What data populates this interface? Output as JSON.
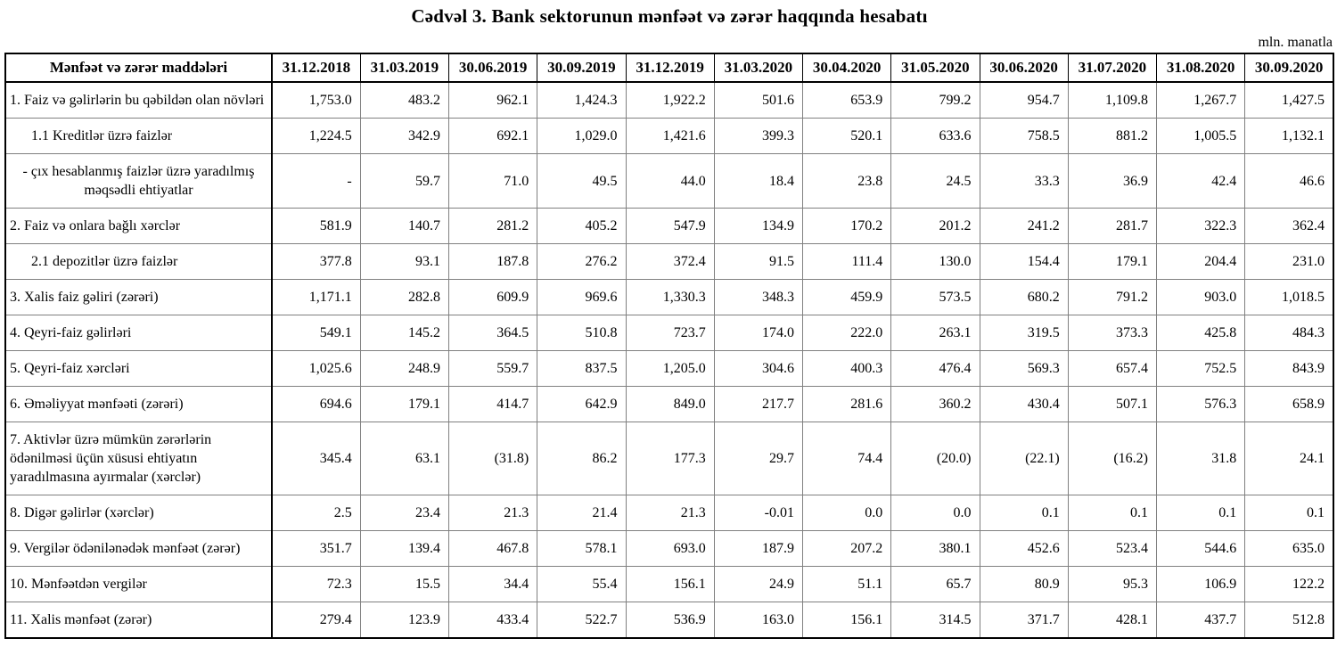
{
  "title": "Cədvəl 3. Bank sektorunun mənfəət və zərər haqqında hesabatı",
  "unit_label": "mln. manatla",
  "table": {
    "header": [
      "Mənfəət və zərər maddələri",
      "31.12.2018",
      "31.03.2019",
      "30.06.2019",
      "30.09.2019",
      "31.12.2019",
      "31.03.2020",
      "30.04.2020",
      "31.05.2020",
      "30.06.2020",
      "31.07.2020",
      "31.08.2020",
      "30.09.2020"
    ],
    "rows": [
      {
        "label": "1. Faiz və gəlirlərin bu qəbildən olan növləri",
        "style": "main",
        "values": [
          "1,753.0",
          "483.2",
          "962.1",
          "1,424.3",
          "1,922.2",
          "501.6",
          "653.9",
          "799.2",
          "954.7",
          "1,109.8",
          "1,267.7",
          "1,427.5"
        ]
      },
      {
        "label": "1.1 Kreditlər üzrə faizlər",
        "style": "sub",
        "values": [
          "1,224.5",
          "342.9",
          "692.1",
          "1,029.0",
          "1,421.6",
          "399.3",
          "520.1",
          "633.6",
          "758.5",
          "881.2",
          "1,005.5",
          "1,132.1"
        ]
      },
      {
        "label": "-  çıx hesablanmış faizlər üzrə yaradılmış məqsədli ehtiyatlar",
        "style": "center",
        "values": [
          "-",
          "59.7",
          "71.0",
          "49.5",
          "44.0",
          "18.4",
          "23.8",
          "24.5",
          "33.3",
          "36.9",
          "42.4",
          "46.6"
        ]
      },
      {
        "label": "2. Faiz və onlara bağlı xərclər",
        "style": "main",
        "values": [
          "581.9",
          "140.7",
          "281.2",
          "405.2",
          "547.9",
          "134.9",
          "170.2",
          "201.2",
          "241.2",
          "281.7",
          "322.3",
          "362.4"
        ]
      },
      {
        "label": "2.1 depozitlər üzrə faizlər",
        "style": "sub",
        "values": [
          "377.8",
          "93.1",
          "187.8",
          "276.2",
          "372.4",
          "91.5",
          "111.4",
          "130.0",
          "154.4",
          "179.1",
          "204.4",
          "231.0"
        ]
      },
      {
        "label": "3. Xalis faiz gəliri (zərəri)",
        "style": "main",
        "values": [
          "1,171.1",
          "282.8",
          "609.9",
          "969.6",
          "1,330.3",
          "348.3",
          "459.9",
          "573.5",
          "680.2",
          "791.2",
          "903.0",
          "1,018.5"
        ]
      },
      {
        "label": "4. Qeyri-faiz gəlirləri",
        "style": "main",
        "values": [
          "549.1",
          "145.2",
          "364.5",
          "510.8",
          "723.7",
          "174.0",
          "222.0",
          "263.1",
          "319.5",
          "373.3",
          "425.8",
          "484.3"
        ]
      },
      {
        "label": "5. Qeyri-faiz xərcləri",
        "style": "main",
        "values": [
          "1,025.6",
          "248.9",
          "559.7",
          "837.5",
          "1,205.0",
          "304.6",
          "400.3",
          "476.4",
          "569.3",
          "657.4",
          "752.5",
          "843.9"
        ]
      },
      {
        "label": "6. Əməliyyat mənfəəti (zərəri)",
        "style": "main",
        "values": [
          "694.6",
          "179.1",
          "414.7",
          "642.9",
          "849.0",
          "217.7",
          "281.6",
          "360.2",
          "430.4",
          "507.1",
          "576.3",
          "658.9"
        ]
      },
      {
        "label": "7. Aktivlər üzrə mümkün zərərlərin ödənilməsi üçün xüsusi ehtiyatın yaradılmasına ayırmalar (xərclər)",
        "style": "main",
        "values": [
          "345.4",
          "63.1",
          "(31.8)",
          "86.2",
          "177.3",
          "29.7",
          "74.4",
          "(20.0)",
          "(22.1)",
          "(16.2)",
          "31.8",
          "24.1"
        ]
      },
      {
        "label": "8. Digər gəlirlər (xərclər)",
        "style": "main",
        "values": [
          "2.5",
          "23.4",
          "21.3",
          "21.4",
          "21.3",
          "-0.01",
          "0.0",
          "0.0",
          "0.1",
          "0.1",
          "0.1",
          "0.1"
        ]
      },
      {
        "label": "9. Vergilər ödənilənədək mənfəət (zərər)",
        "style": "main",
        "values": [
          "351.7",
          "139.4",
          "467.8",
          "578.1",
          "693.0",
          "187.9",
          "207.2",
          "380.1",
          "452.6",
          "523.4",
          "544.6",
          "635.0"
        ]
      },
      {
        "label": "10. Mənfəətdən vergilər",
        "style": "main",
        "values": [
          "72.3",
          "15.5",
          "34.4",
          "55.4",
          "156.1",
          "24.9",
          "51.1",
          "65.7",
          "80.9",
          "95.3",
          "106.9",
          "122.2"
        ]
      },
      {
        "label": "11. Xalis mənfəət (zərər)",
        "style": "main",
        "values": [
          "279.4",
          "123.9",
          "433.4",
          "522.7",
          "536.9",
          "163.0",
          "156.1",
          "314.5",
          "371.7",
          "428.1",
          "437.7",
          "512.8"
        ]
      }
    ]
  }
}
